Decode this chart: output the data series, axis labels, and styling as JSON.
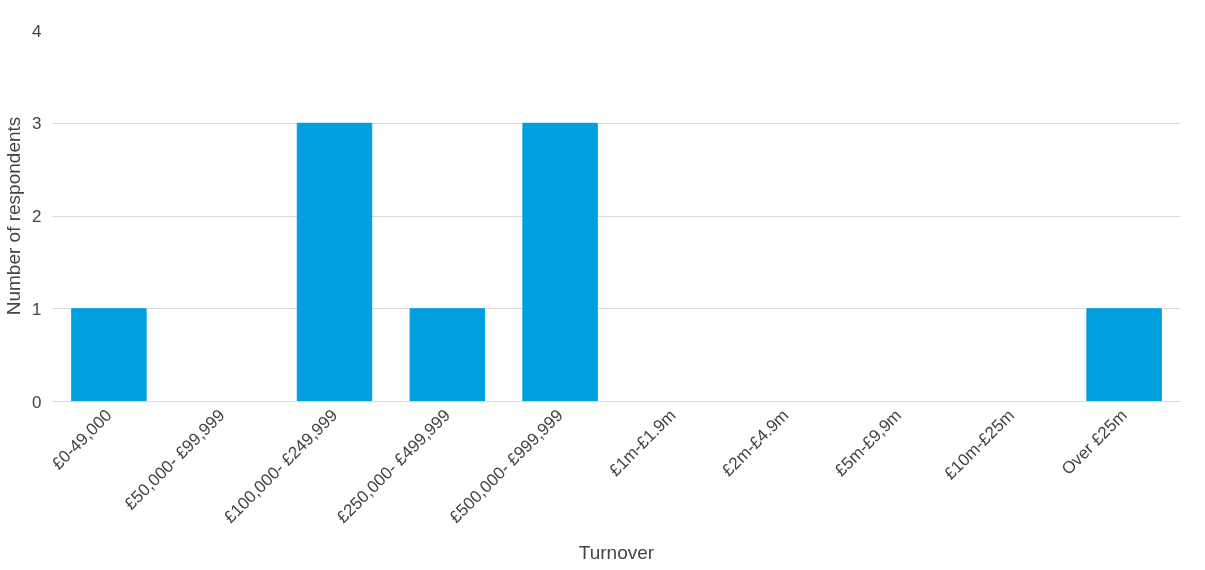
{
  "chart_data": {
    "type": "bar",
    "xlabel": "Turnover",
    "ylabel": "Number of respondents",
    "categories": [
      "£0-49,000",
      "£50,000- £99,999",
      "£100,000- £249,999",
      "£250,000- £499,999",
      "£500,000- £999,999",
      "£1m-£1.9m",
      "£2m-£4.9m",
      "£5m-£9,9m",
      "£10m-£25m",
      "Over £25m"
    ],
    "values": [
      1,
      0,
      3,
      1,
      3,
      0,
      0,
      0,
      0,
      1
    ],
    "color": "#009fe0",
    "ylim": [
      0,
      4
    ],
    "yticks": [
      0,
      1,
      2,
      3,
      4
    ],
    "grid": "y"
  }
}
